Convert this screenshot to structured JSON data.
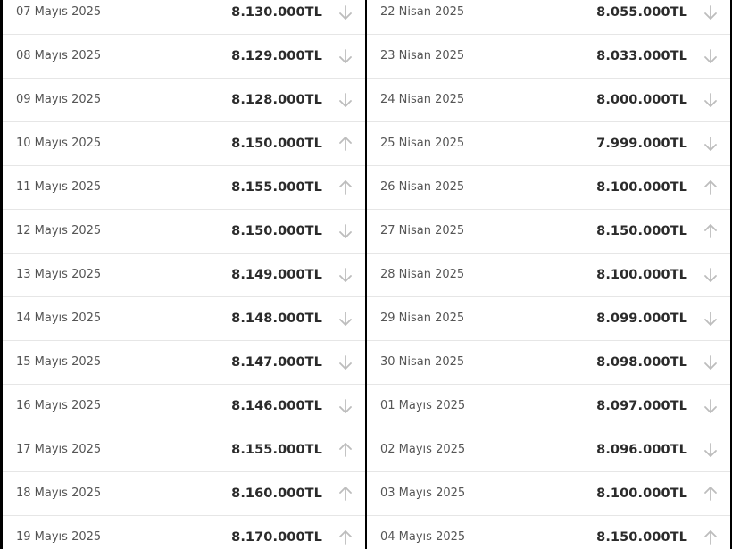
{
  "left_column": [
    {
      "date": "07 Mayıs 2025",
      "price": "8.130.000TL",
      "trend": "down"
    },
    {
      "date": "08 Mayıs 2025",
      "price": "8.129.000TL",
      "trend": "down"
    },
    {
      "date": "09 Mayıs 2025",
      "price": "8.128.000TL",
      "trend": "down"
    },
    {
      "date": "10 Mayıs 2025",
      "price": "8.150.000TL",
      "trend": "up"
    },
    {
      "date": "11 Mayıs 2025",
      "price": "8.155.000TL",
      "trend": "up"
    },
    {
      "date": "12 Mayıs 2025",
      "price": "8.150.000TL",
      "trend": "down"
    },
    {
      "date": "13 Mayıs 2025",
      "price": "8.149.000TL",
      "trend": "down"
    },
    {
      "date": "14 Mayıs 2025",
      "price": "8.148.000TL",
      "trend": "down"
    },
    {
      "date": "15 Mayıs 2025",
      "price": "8.147.000TL",
      "trend": "down"
    },
    {
      "date": "16 Mayıs 2025",
      "price": "8.146.000TL",
      "trend": "down"
    },
    {
      "date": "17 Mayıs 2025",
      "price": "8.155.000TL",
      "trend": "up"
    },
    {
      "date": "18 Mayıs 2025",
      "price": "8.160.000TL",
      "trend": "up"
    },
    {
      "date": "19 Mayıs 2025",
      "price": "8.170.000TL",
      "trend": "up"
    }
  ],
  "right_column": [
    {
      "date": "22 Nisan 2025",
      "price": "8.055.000TL",
      "trend": "down"
    },
    {
      "date": "23 Nisan 2025",
      "price": "8.033.000TL",
      "trend": "down"
    },
    {
      "date": "24 Nisan 2025",
      "price": "8.000.000TL",
      "trend": "down"
    },
    {
      "date": "25 Nisan 2025",
      "price": "7.999.000TL",
      "trend": "down"
    },
    {
      "date": "26 Nisan 2025",
      "price": "8.100.000TL",
      "trend": "up"
    },
    {
      "date": "27 Nisan 2025",
      "price": "8.150.000TL",
      "trend": "up"
    },
    {
      "date": "28 Nisan 2025",
      "price": "8.100.000TL",
      "trend": "down"
    },
    {
      "date": "29 Nisan 2025",
      "price": "8.099.000TL",
      "trend": "down"
    },
    {
      "date": "30 Nisan 2025",
      "price": "8.098.000TL",
      "trend": "down"
    },
    {
      "date": "01 Mayıs 2025",
      "price": "8.097.000TL",
      "trend": "down"
    },
    {
      "date": "02 Mayıs 2025",
      "price": "8.096.000TL",
      "trend": "down"
    },
    {
      "date": "03 Mayıs 2025",
      "price": "8.100.000TL",
      "trend": "up"
    },
    {
      "date": "04 Mayıs 2025",
      "price": "8.150.000TL",
      "trend": "up"
    }
  ],
  "colors": {
    "arrow": "#bdbdbd"
  }
}
